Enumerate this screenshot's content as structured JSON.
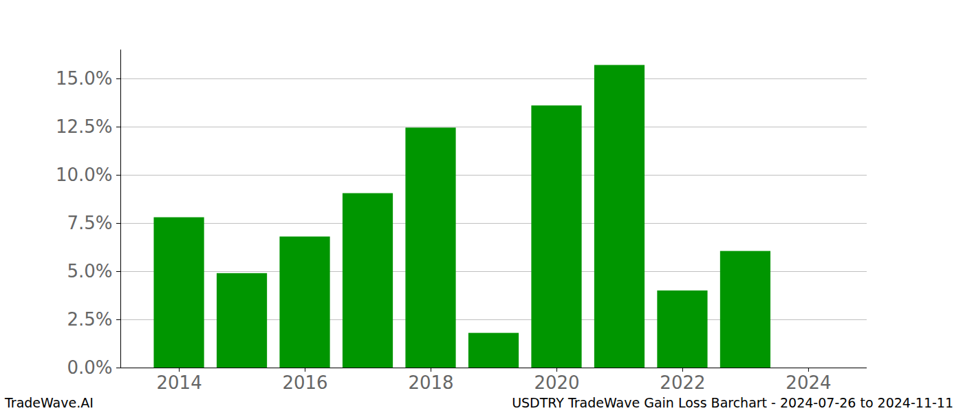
{
  "chart_data": {
    "type": "bar",
    "title": "USDTRY TradeWave Gain Loss Barchart - 2024-07-26 to 2024-11-11",
    "caption": "TradeWave.AI",
    "x": [
      2014,
      2015,
      2016,
      2017,
      2018,
      2019,
      2020,
      2021,
      2022,
      2023
    ],
    "values": [
      7.8,
      4.9,
      6.8,
      9.05,
      12.45,
      1.8,
      13.6,
      15.7,
      4.0,
      6.05
    ],
    "color": "#009600",
    "xlim": [
      2013.07,
      2024.93
    ],
    "xticks": [
      2014,
      2016,
      2018,
      2020,
      2022,
      2024
    ],
    "ylim": [
      0,
      16.5
    ],
    "yticks": [
      {
        "value": 0,
        "label": "0.0%"
      },
      {
        "value": 2.5,
        "label": "2.5%"
      },
      {
        "value": 5,
        "label": "5.0%"
      },
      {
        "value": 7.5,
        "label": "7.5%"
      },
      {
        "value": 10,
        "label": "10.0%"
      },
      {
        "value": 12.5,
        "label": "12.5%"
      },
      {
        "value": 15,
        "label": "15.0%"
      }
    ],
    "grid": true
  }
}
